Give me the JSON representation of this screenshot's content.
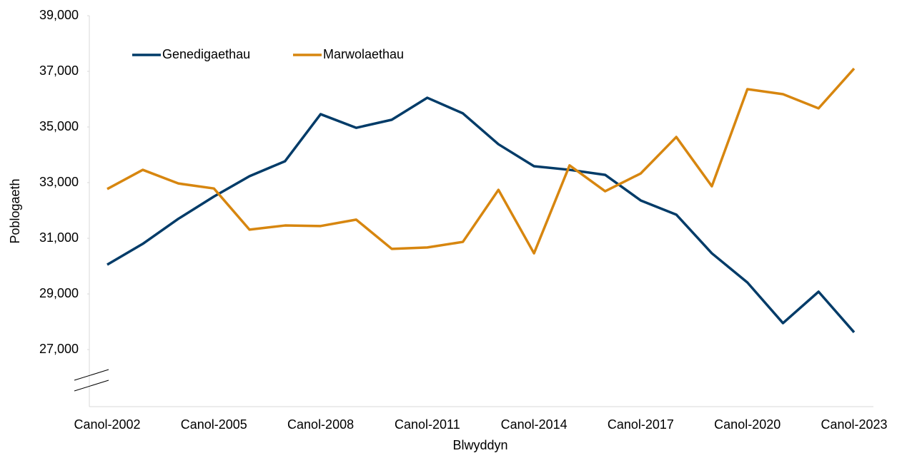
{
  "chart_data": {
    "type": "line",
    "x_label": "Blwyddyn",
    "y_label": "Poblogaeth",
    "categories": [
      "Canol-2002",
      null,
      null,
      "Canol-2005",
      null,
      null,
      "Canol-2008",
      null,
      null,
      "Canol-2011",
      null,
      null,
      "Canol-2014",
      null,
      null,
      "Canol-2017",
      null,
      null,
      "Canol-2020",
      null,
      null,
      "Canol-2023"
    ],
    "series": [
      {
        "name": "Genedigaethau",
        "color": "#003b68",
        "values": [
          30050,
          30800,
          31700,
          32500,
          33230,
          33770,
          35460,
          34970,
          35260,
          36050,
          35490,
          34380,
          33590,
          33460,
          33280,
          32360,
          31850,
          30460,
          29410,
          27950,
          29080,
          27620
        ]
      },
      {
        "name": "Marwolaethau",
        "color": "#d7860f",
        "values": [
          32770,
          33460,
          32970,
          32790,
          31310,
          31460,
          31440,
          31670,
          30620,
          30670,
          30870,
          32740,
          30460,
          33620,
          32690,
          33330,
          34640,
          32870,
          36360,
          36180,
          35670,
          37100
        ]
      }
    ],
    "ylim": [
      25000,
      39000
    ],
    "yticks": [
      {
        "value": 27000,
        "label": "27,000"
      },
      {
        "value": 29000,
        "label": "29,000"
      },
      {
        "value": 31000,
        "label": "31,000"
      },
      {
        "value": 33000,
        "label": "33,000"
      },
      {
        "value": 35000,
        "label": "35,000"
      },
      {
        "value": 37000,
        "label": "37,000"
      },
      {
        "value": 39000,
        "label": "39,000"
      }
    ],
    "legend": "top-left"
  }
}
